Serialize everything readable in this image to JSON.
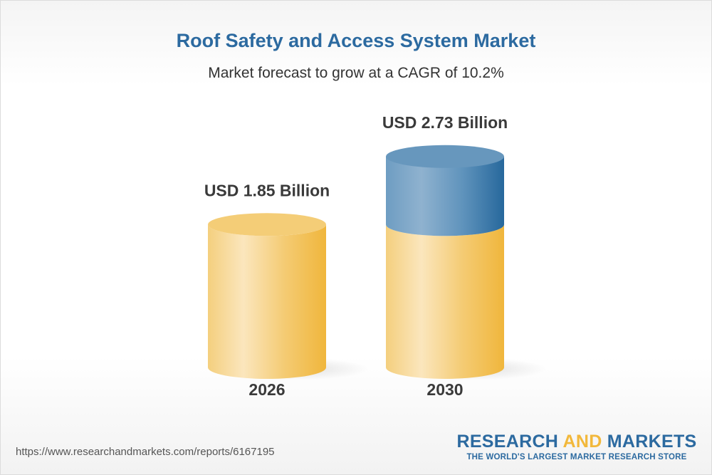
{
  "chart_data": {
    "type": "bar",
    "style": "3d-cylinder",
    "title": "Roof Safety and Access System Market",
    "subtitle": "Market forecast to grow at a CAGR of 10.2%",
    "categories": [
      "2026",
      "2030"
    ],
    "values": [
      1.85,
      2.73
    ],
    "data_labels": [
      "USD 1.85 Billion",
      "USD 2.73 Billion"
    ],
    "unit": "USD Billion",
    "colors": {
      "base": "#f2b83b",
      "growth": "#2c6aa0"
    }
  },
  "footer": {
    "url": "https://www.researchandmarkets.com/reports/6167195",
    "logo_part1": "RESEARCH ",
    "logo_part2": "AND",
    "logo_part3": " MARKETS",
    "logo_tagline": "THE WORLD'S LARGEST MARKET RESEARCH STORE"
  }
}
